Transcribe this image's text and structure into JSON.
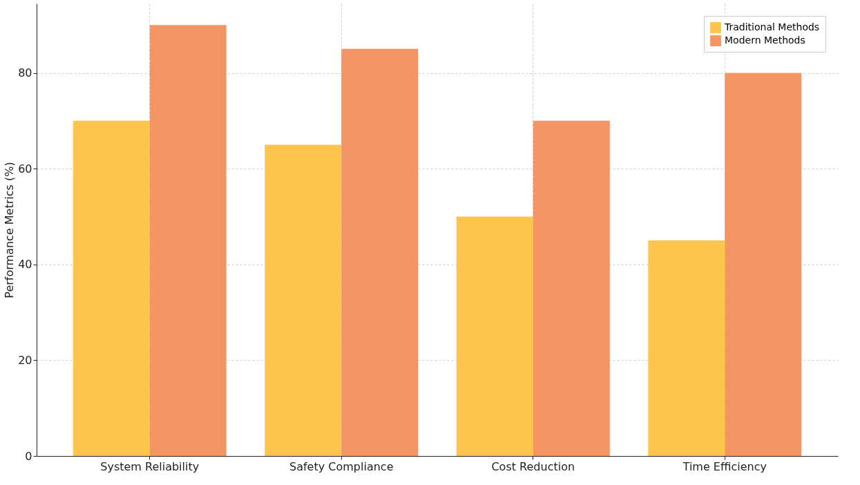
{
  "chart_data": {
    "type": "bar",
    "ylabel": "Performance Metrics (%)",
    "categories": [
      "System Reliability",
      "Safety Compliance",
      "Cost Reduction",
      "Time Efficiency"
    ],
    "series": [
      {
        "name": "Traditional Methods",
        "color": "#fdc54b",
        "values": [
          70,
          65,
          50,
          45
        ]
      },
      {
        "name": "Modern Methods",
        "color": "#f49563",
        "values": [
          90,
          85,
          70,
          80
        ]
      }
    ],
    "ylim": [
      0,
      94.5
    ],
    "yticks": [
      0,
      20,
      40,
      60,
      80
    ],
    "grid": true,
    "legend": "top right"
  }
}
